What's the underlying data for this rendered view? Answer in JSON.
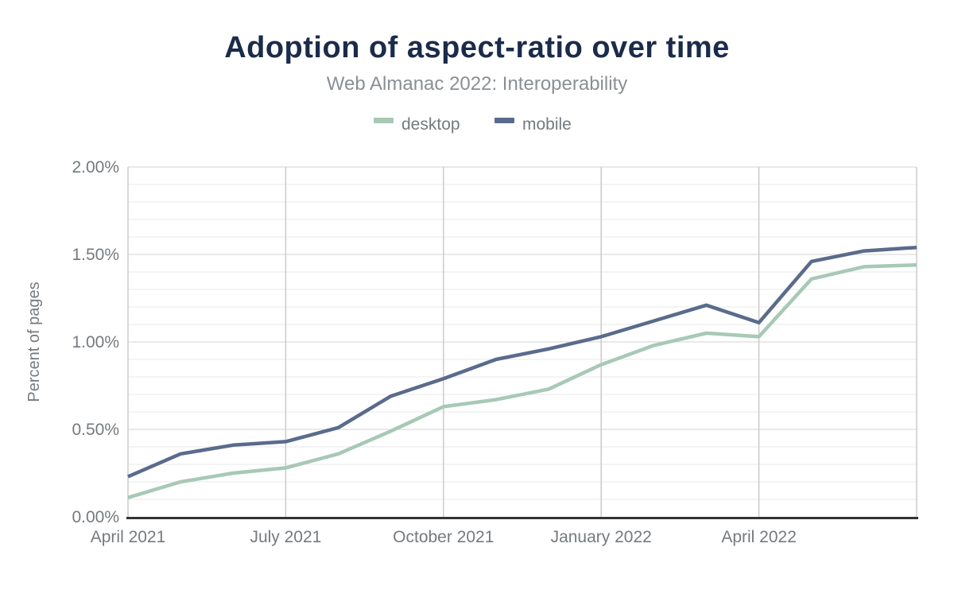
{
  "accent_colors": {
    "title": "#1b2b4a",
    "subtitle_gray": "#8a8f94",
    "tick_gray": "#757a7e",
    "grid_major": "#e2e2e2",
    "grid_minor": "#f1f1f1",
    "grid_vertical": "#cbcbcb",
    "axis_line": "#333333"
  },
  "legend": {
    "items": [
      {
        "label": "desktop",
        "color": "#a7c9b5"
      },
      {
        "label": "mobile",
        "color": "#5a6b8c"
      }
    ]
  },
  "chart_data": {
    "type": "line",
    "title": "Adoption of aspect-ratio over time",
    "subtitle": "Web Almanac 2022: Interoperability",
    "ylabel": "Percent of pages",
    "xlabel": "",
    "unit": "%",
    "ylim": [
      0,
      2
    ],
    "grid": "on",
    "legend_position": "top-center",
    "months": [
      "Apr 2021",
      "May 2021",
      "Jun 2021",
      "Jul 2021",
      "Aug 2021",
      "Sep 2021",
      "Oct 2021",
      "Nov 2021",
      "Dec 2021",
      "Jan 2022",
      "Feb 2022",
      "Mar 2022",
      "Apr 2022",
      "May 2022",
      "Jun 2022",
      "Jul 2022"
    ],
    "x_ticks": [
      {
        "i": 0,
        "label": "April 2021"
      },
      {
        "i": 3,
        "label": "July 2021"
      },
      {
        "i": 6,
        "label": "October 2021"
      },
      {
        "i": 9,
        "label": "January 2022"
      },
      {
        "i": 12,
        "label": "April 2022"
      }
    ],
    "y_ticks": [
      {
        "v": 0.0,
        "label": "0.00%"
      },
      {
        "v": 0.5,
        "label": "0.50%"
      },
      {
        "v": 1.0,
        "label": "1.00%"
      },
      {
        "v": 1.5,
        "label": "1.50%"
      },
      {
        "v": 2.0,
        "label": "2.00%"
      }
    ],
    "minor_grid_step": 0.1,
    "series": [
      {
        "name": "desktop",
        "color": "#a7c9b5",
        "values": [
          0.11,
          0.2,
          0.25,
          0.28,
          0.36,
          0.49,
          0.63,
          0.67,
          0.73,
          0.87,
          0.98,
          1.05,
          1.03,
          1.36,
          1.43,
          1.44
        ]
      },
      {
        "name": "mobile",
        "color": "#5a6b8c",
        "values": [
          0.23,
          0.36,
          0.41,
          0.43,
          0.51,
          0.69,
          0.79,
          0.9,
          0.96,
          1.03,
          1.12,
          1.21,
          1.11,
          1.46,
          1.52,
          1.54
        ]
      }
    ]
  }
}
